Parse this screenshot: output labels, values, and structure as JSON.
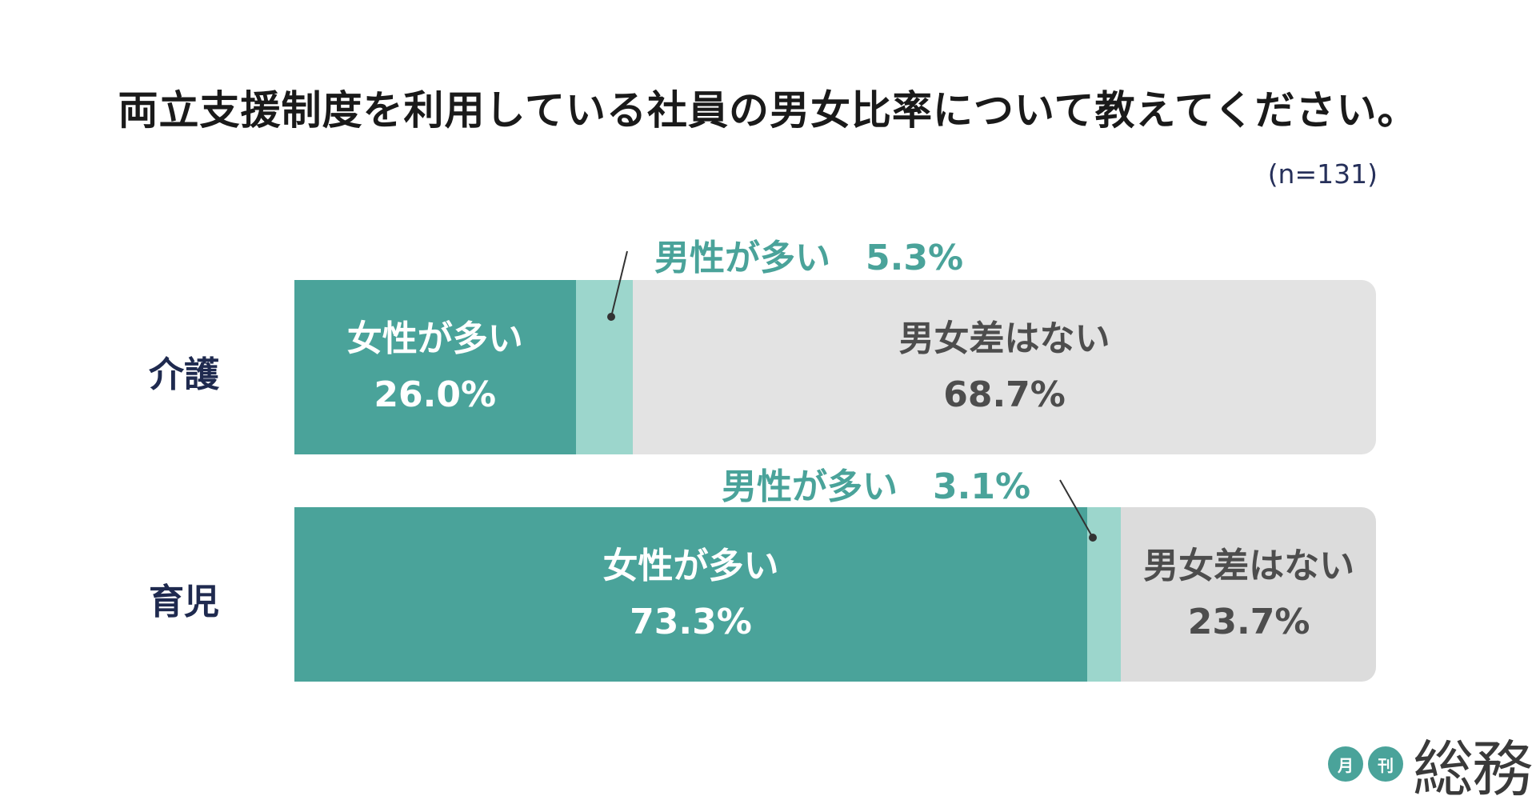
{
  "title": "両立支援制度を利用している社員の男女比率について教えてください。",
  "sample_size": "(n=131)",
  "legend": {
    "women_more": "女性が多い",
    "men_more": "男性が多い",
    "no_difference": "男女差はない"
  },
  "colors": {
    "women_more": "#4aa39a",
    "men_more": "#9cd6cc",
    "no_difference": "#e3e3e3",
    "title": "#1a1a1a",
    "row_label": "#1f2a4f"
  },
  "chart_data": {
    "type": "bar",
    "orientation": "horizontal",
    "stacked": true,
    "percent_stacked": true,
    "title": "両立支援制度を利用している社員の男女比率について教えてください。",
    "categories": [
      "介護",
      "育児"
    ],
    "series": [
      {
        "name": "女性が多い",
        "values": [
          26.0,
          73.3
        ],
        "labels": [
          "26.0%",
          "73.3%"
        ]
      },
      {
        "name": "男性が多い",
        "values": [
          5.3,
          3.1
        ],
        "labels": [
          "5.3%",
          "3.1%"
        ]
      },
      {
        "name": "男女差はない",
        "values": [
          68.7,
          23.7
        ],
        "labels": [
          "68.7%",
          "23.7%"
        ]
      }
    ],
    "xlim": [
      0,
      100
    ],
    "grid": false,
    "legend": "inline-labels"
  },
  "logo": {
    "circle_1": "月",
    "circle_2": "刊",
    "text": "総務"
  }
}
